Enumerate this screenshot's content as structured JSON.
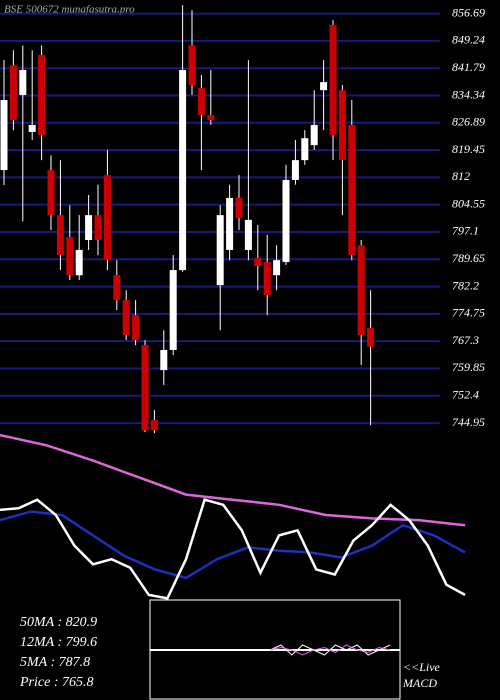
{
  "chart_data": {
    "type": "candlestick",
    "watermark": "BSE 500672 munafasutra.pro",
    "open": [
      814.0,
      842.6,
      834.5,
      824.4,
      845.4,
      814.0,
      801.7,
      795.7,
      785.3,
      794.9,
      801.7,
      812.6,
      785.3,
      778.5,
      774.4,
      766.2,
      745.8,
      759.4,
      764.9,
      786.7,
      848.1,
      836.4,
      829.0,
      782.6,
      792.2,
      806.4,
      792.2,
      790.0,
      788.9,
      785.3,
      788.9,
      811.3,
      816.7,
      820.8,
      835.8,
      853.6,
      835.8,
      826.3,
      793.5,
      770.9
    ],
    "high": [
      844.0,
      846.7,
      848.0,
      846.7,
      848.0,
      818.0,
      816.7,
      804.4,
      801.7,
      807.2,
      810.0,
      819.5,
      789.4,
      781.2,
      778.5,
      767.6,
      748.5,
      770.3,
      790.8,
      859.0,
      857.6,
      839.9,
      841.3,
      804.4,
      810.0,
      812.6,
      844.0,
      799.0,
      796.3,
      793.5,
      815.4,
      822.2,
      824.9,
      835.8,
      844.0,
      854.9,
      837.2,
      833.1,
      794.9,
      781.2
    ],
    "low": [
      809.9,
      824.9,
      800.0,
      822.2,
      816.7,
      797.6,
      786.7,
      784.0,
      784.0,
      792.2,
      790.8,
      786.7,
      775.8,
      767.6,
      766.2,
      742.5,
      742.2,
      755.3,
      763.5,
      786.2,
      834.5,
      814.0,
      826.3,
      770.3,
      789.4,
      797.6,
      789.4,
      781.2,
      774.4,
      781.2,
      788.1,
      810.0,
      815.4,
      819.5,
      824.9,
      816.7,
      801.7,
      789.4,
      760.8,
      744.4
    ],
    "close": [
      833.1,
      827.6,
      841.3,
      826.3,
      823.5,
      801.7,
      790.8,
      785.3,
      792.2,
      801.7,
      794.9,
      789.4,
      778.5,
      769.0,
      767.6,
      743.0,
      743.0,
      764.9,
      786.7,
      841.3,
      837.2,
      829.0,
      827.6,
      801.7,
      806.4,
      800.9,
      800.4,
      787.8,
      779.9,
      789.4,
      811.3,
      816.7,
      822.7,
      826.3,
      838.0,
      823.5,
      816.7,
      790.8,
      769.0,
      765.8
    ],
    "up_color": "#ffffff",
    "down_color": "#cc0000",
    "ylim": [
      741.7,
      860.4
    ],
    "yticks": [
      856.69,
      849.24,
      841.79,
      834.34,
      826.89,
      819.45,
      812,
      804.55,
      797.1,
      789.65,
      782.2,
      774.75,
      767.3,
      759.85,
      752.4,
      744.95
    ],
    "grid": true,
    "grid_color": "#1a1a7a",
    "indicator_ylim": [
      0,
      100
    ],
    "indicators": [
      {
        "name": "50MA",
        "color": "#dd66dd",
        "values": [
          97,
          91,
          82,
          72,
          62,
          59,
          56,
          50,
          48,
          47,
          44
        ]
      },
      {
        "name": "12MA",
        "color": "#1f2fbf",
        "values": [
          47,
          52,
          50,
          38,
          26,
          18,
          13,
          24,
          31,
          29,
          28,
          25,
          32,
          44,
          38,
          28
        ]
      },
      {
        "name": "5MA",
        "color": "#ffffff",
        "values": [
          53,
          54,
          59,
          50,
          32,
          21,
          24,
          19,
          3,
          1,
          24,
          59,
          56,
          41,
          16,
          38,
          41,
          18,
          15,
          35,
          44,
          56,
          47,
          32,
          9,
          3
        ]
      }
    ],
    "summary": [
      "50MA : 820.9",
      "12MA : 799.6",
      "5MA : 787.8",
      "Price   : 765.8"
    ],
    "macd_label": [
      "<<Live",
      "MACD"
    ],
    "macd_ylim": [
      -1,
      1
    ],
    "macd": [
      {
        "color": "#ffffff",
        "values": [
          0,
          0.1,
          -0.1,
          0.1,
          0,
          -0.1,
          0.1,
          0,
          0.1,
          -0.1,
          0,
          0.1
        ]
      },
      {
        "color": "#dd66dd",
        "values": [
          0,
          0.05,
          0,
          -0.1,
          0,
          0.05,
          -0.05,
          0.1,
          0,
          -0.05,
          0.05,
          0
        ]
      }
    ]
  }
}
